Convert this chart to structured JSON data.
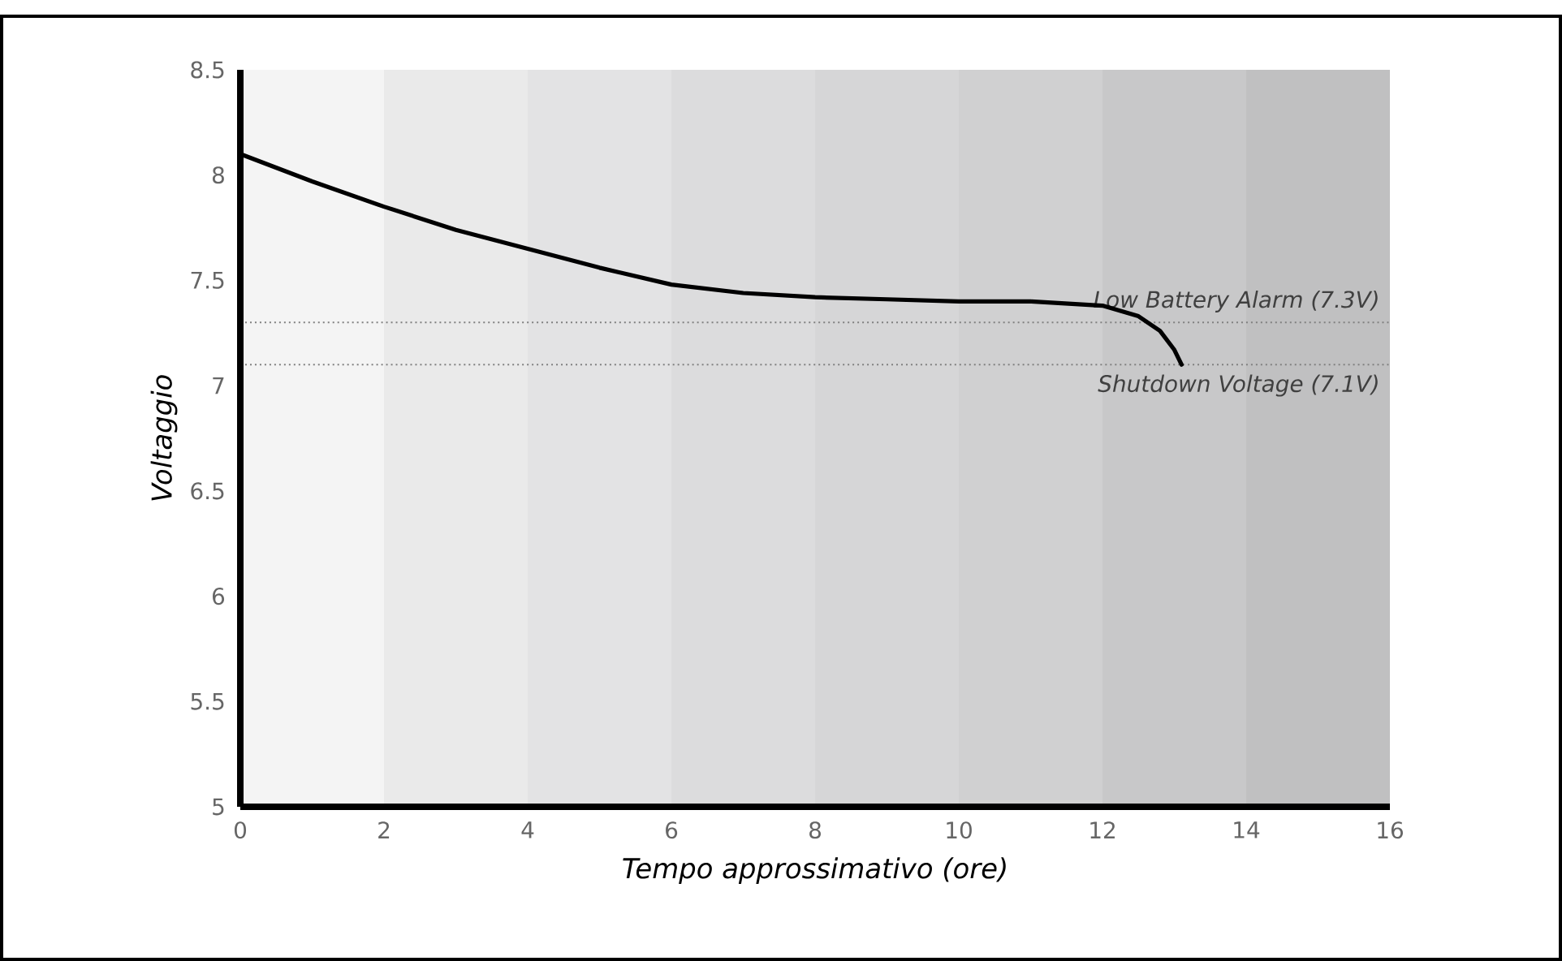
{
  "chart_data": {
    "type": "line",
    "xlabel": "Tempo approssimativo (ore)",
    "ylabel": "Voltaggio",
    "series": [
      {
        "color": "#000000",
        "x": [
          0,
          1,
          2,
          3,
          4,
          5,
          6,
          7,
          8,
          9,
          10,
          11,
          12,
          12.5,
          12.8,
          13,
          13.1
        ],
        "values": [
          8.1,
          7.97,
          7.85,
          7.74,
          7.65,
          7.56,
          7.48,
          7.44,
          7.42,
          7.41,
          7.4,
          7.4,
          7.38,
          7.33,
          7.26,
          7.17,
          7.1
        ]
      }
    ],
    "xlim": [
      0,
      16
    ],
    "xticks": [
      0,
      2,
      4,
      6,
      8,
      10,
      12,
      14,
      16
    ],
    "ylim": [
      5,
      8.5
    ],
    "yticks": [
      5,
      5.5,
      6,
      6.5,
      7,
      7.5,
      8,
      8.5
    ],
    "ref_lines": [
      {
        "axis": "y",
        "value": 7.3,
        "label": "Low Battery Alarm (7.3V)",
        "color": "#808080",
        "line_style": "dotted"
      },
      {
        "axis": "y",
        "value": 7.1,
        "label": "Shutdown Voltage (7.1V)",
        "color": "#808080",
        "line_style": "dotted"
      }
    ],
    "bands": [
      {
        "axis": "x",
        "from": 0,
        "to": 2,
        "color": "#f4f4f4"
      },
      {
        "axis": "x",
        "from": 2,
        "to": 4,
        "color": "#eaeaea"
      },
      {
        "axis": "x",
        "from": 4,
        "to": 6,
        "color": "#e3e3e4"
      },
      {
        "axis": "x",
        "from": 6,
        "to": 8,
        "color": "#dcdcdd"
      },
      {
        "axis": "x",
        "from": 8,
        "to": 10,
        "color": "#d6d6d7"
      },
      {
        "axis": "x",
        "from": 10,
        "to": 12,
        "color": "#d0d0d1"
      },
      {
        "axis": "x",
        "from": 12,
        "to": 14,
        "color": "#c8c8c9"
      },
      {
        "axis": "x",
        "from": 14,
        "to": 16,
        "color": "#c0c0c1"
      }
    ],
    "grid": false,
    "line_style": "solid"
  }
}
